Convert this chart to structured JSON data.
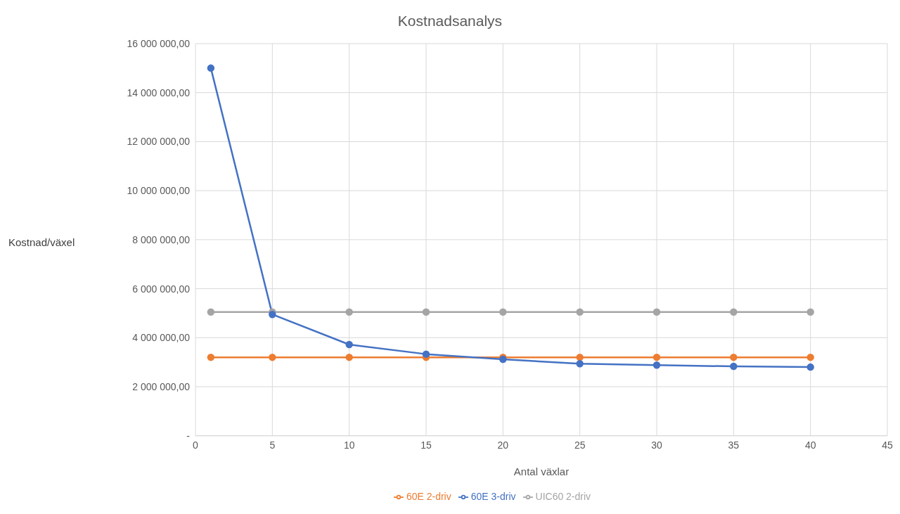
{
  "chart_data": {
    "type": "line",
    "title": "Kostnadsanalys",
    "xlabel": "Antal växlar",
    "ylabel": "Kostnad/växel",
    "x": [
      1,
      5,
      10,
      15,
      20,
      25,
      30,
      35,
      40
    ],
    "series": [
      {
        "name": "60E 3-driv",
        "color": "#4472c4",
        "values": [
          15000000,
          4950000,
          3720000,
          3330000,
          3120000,
          2940000,
          2880000,
          2830000,
          2800000
        ]
      },
      {
        "name": "60E 2-driv",
        "color": "#ed7d31",
        "values": [
          3200000,
          3200000,
          3200000,
          3200000,
          3200000,
          3200000,
          3200000,
          3200000,
          3200000
        ]
      },
      {
        "name": "UIC60 2-driv",
        "color": "#a5a5a5",
        "values": [
          5050000,
          5050000,
          5050000,
          5050000,
          5050000,
          5050000,
          5050000,
          5050000,
          5050000
        ]
      }
    ],
    "xlim": [
      0,
      45
    ],
    "xticks": [
      0,
      5,
      10,
      15,
      20,
      25,
      30,
      35,
      40,
      45
    ],
    "ylim": [
      0,
      16000000
    ],
    "yticks": [
      {
        "value": 0,
        "label": "-"
      },
      {
        "value": 2000000,
        "label": "2 000 000,00"
      },
      {
        "value": 4000000,
        "label": "4 000 000,00"
      },
      {
        "value": 6000000,
        "label": "6 000 000,00"
      },
      {
        "value": 8000000,
        "label": "8 000 000,00"
      },
      {
        "value": 10000000,
        "label": "10 000 000,00"
      },
      {
        "value": 12000000,
        "label": "12 000 000,00"
      },
      {
        "value": 14000000,
        "label": "14 000 000,00"
      },
      {
        "value": 16000000,
        "label": "16 000 000,00"
      }
    ],
    "grid": true,
    "legend": "bottom",
    "marker": "circle",
    "line_style": "solid"
  }
}
